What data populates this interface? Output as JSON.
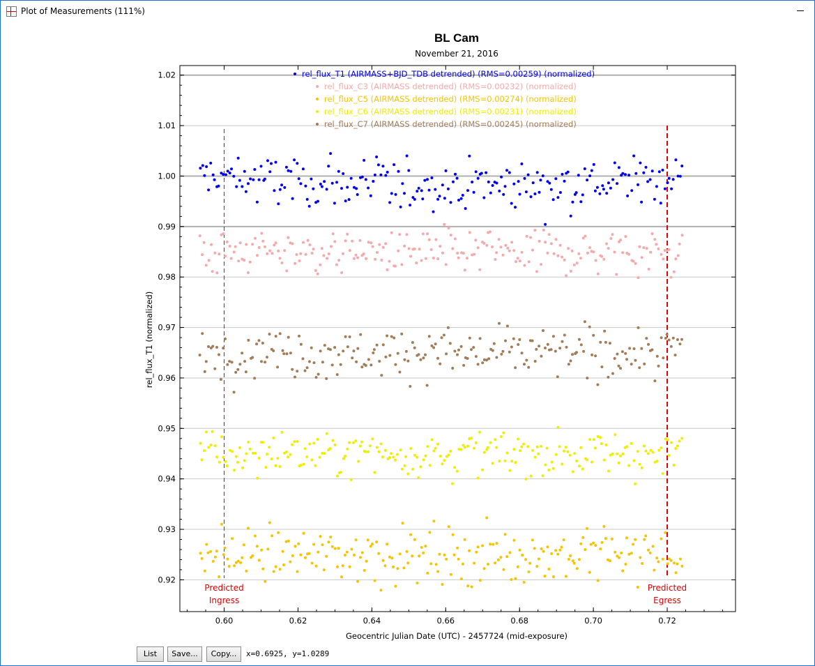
{
  "window": {
    "title": "Plot of Measurements (111%)"
  },
  "buttons": {
    "list": "List",
    "save": "Save...",
    "copy": "Copy..."
  },
  "status": {
    "cursor_readout": "x=0.6925, y=1.0289"
  },
  "colors": {
    "T1": "#0000ee",
    "C3": "#f4aaaa",
    "C5": "#f5c400",
    "C6": "#eeee00",
    "C7": "#a27c58",
    "predicted": "#dd0000",
    "grid": "#c8c8c8"
  },
  "chart_data": {
    "type": "scatter",
    "title": "BL Cam",
    "subtitle": "November 21, 2016",
    "xlabel": "Geocentric Julian Date (UTC) - 2457724 (mid-exposure)",
    "ylabel": "rel_flux_T1 (normalized)",
    "xlim": [
      0.588,
      0.7385
    ],
    "ylim": [
      0.9137,
      1.0219
    ],
    "xticks": [
      "0.60",
      "0.62",
      "0.64",
      "0.66",
      "0.68",
      "0.70",
      "0.72"
    ],
    "xtick_values": [
      0.6,
      0.62,
      0.64,
      0.66,
      0.68,
      0.7,
      0.72
    ],
    "yticks": [
      "0.92",
      "0.93",
      "0.94",
      "0.95",
      "0.96",
      "0.97",
      "0.98",
      "0.99",
      "1.00",
      "1.01",
      "1.02"
    ],
    "ytick_values": [
      0.92,
      0.93,
      0.94,
      0.95,
      0.96,
      0.97,
      0.98,
      0.99,
      1.0,
      1.01,
      1.02
    ],
    "grid": true,
    "legend_position": "top-center",
    "x_range_observed": [
      0.5935,
      0.724
    ],
    "series": [
      {
        "name": "rel_flux_T1 (AIRMASS+BJD_TDB detrended) (RMS=0.00259) (normalized)",
        "level": 0.9999,
        "scatter": 0.00259,
        "transit_depth": 0.002,
        "color": "#0000ee"
      },
      {
        "name": "rel_flux_C3 (AIRMASS detrended) (RMS=0.00232) (normalized)",
        "level": 0.985,
        "scatter": 0.00232,
        "color": "#f4aaaa"
      },
      {
        "name": "rel_flux_C5 (AIRMASS detrended) (RMS=0.00274) (normalized)",
        "level": 0.925,
        "scatter": 0.00274,
        "color": "#f5c400"
      },
      {
        "name": "rel_flux_C6 (AIRMASS detrended) (RMS=0.00231) (normalized)",
        "level": 0.945,
        "scatter": 0.00231,
        "color": "#eeee00"
      },
      {
        "name": "rel_flux_C7 (AIRMASS detrended) (RMS=0.00245) (normalized)",
        "level": 0.965,
        "scatter": 0.00245,
        "color": "#a27c58"
      }
    ],
    "markers": [
      {
        "x": 0.6,
        "label_line1": "Predicted",
        "label_line2": "Ingress"
      },
      {
        "x": 0.72,
        "label_line1": "Predicted",
        "label_line2": "Egress"
      }
    ]
  }
}
